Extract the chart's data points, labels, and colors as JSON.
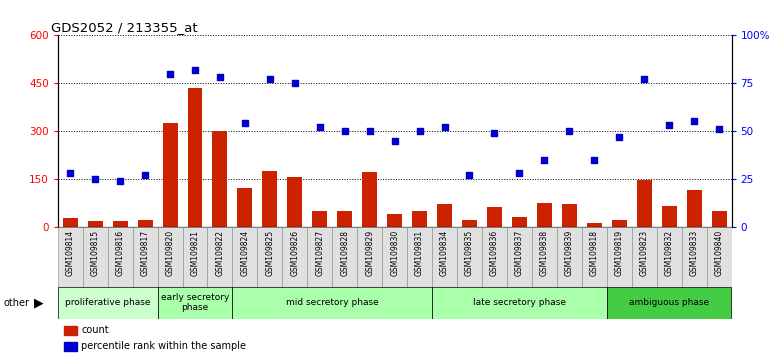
{
  "title": "GDS2052 / 213355_at",
  "samples": [
    "GSM109814",
    "GSM109815",
    "GSM109816",
    "GSM109817",
    "GSM109820",
    "GSM109821",
    "GSM109822",
    "GSM109824",
    "GSM109825",
    "GSM109826",
    "GSM109827",
    "GSM109828",
    "GSM109829",
    "GSM109830",
    "GSM109831",
    "GSM109834",
    "GSM109835",
    "GSM109836",
    "GSM109837",
    "GSM109838",
    "GSM109839",
    "GSM109818",
    "GSM109819",
    "GSM109823",
    "GSM109832",
    "GSM109833",
    "GSM109840"
  ],
  "counts": [
    28,
    18,
    18,
    22,
    325,
    435,
    300,
    120,
    175,
    155,
    50,
    50,
    170,
    40,
    50,
    70,
    20,
    60,
    30,
    75,
    70,
    10,
    20,
    145,
    65,
    115,
    50
  ],
  "percentiles": [
    28,
    25,
    24,
    27,
    80,
    82,
    78,
    54,
    77,
    75,
    52,
    50,
    50,
    45,
    50,
    52,
    27,
    49,
    28,
    35,
    50,
    35,
    47,
    77,
    53,
    55,
    51
  ],
  "phases": [
    {
      "name": "proliferative phase",
      "start": 0,
      "end": 4,
      "color": "#ccffcc"
    },
    {
      "name": "early secretory\nphase",
      "start": 4,
      "end": 7,
      "color": "#aaffaa"
    },
    {
      "name": "mid secretory phase",
      "start": 7,
      "end": 15,
      "color": "#aaffaa"
    },
    {
      "name": "late secretory phase",
      "start": 15,
      "end": 22,
      "color": "#aaffaa"
    },
    {
      "name": "ambiguous phase",
      "start": 22,
      "end": 27,
      "color": "#44cc44"
    }
  ],
  "bar_color": "#cc2200",
  "dot_color": "#0000cc",
  "ylim_left": [
    0,
    600
  ],
  "ylim_right": [
    0,
    100
  ],
  "yticks_left": [
    0,
    150,
    300,
    450,
    600
  ],
  "yticks_right": [
    0,
    25,
    50,
    75,
    100
  ],
  "ytick_labels_left": [
    "0",
    "150",
    "300",
    "450",
    "600"
  ],
  "ytick_labels_right": [
    "0",
    "25",
    "50",
    "75",
    "100%"
  ]
}
